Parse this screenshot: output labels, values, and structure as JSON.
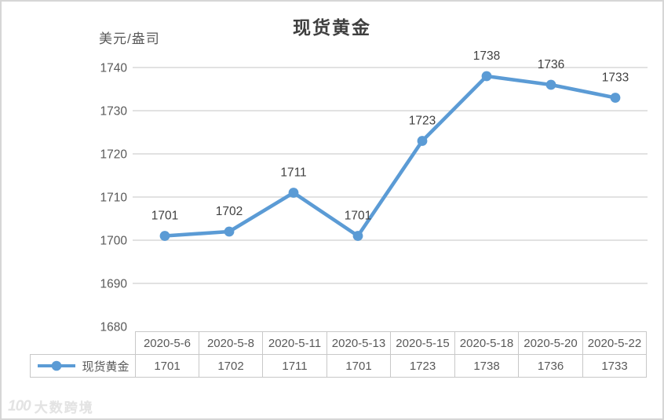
{
  "chart_data": {
    "type": "line",
    "title": "现货黄金",
    "y_unit_label": "美元/盎司",
    "categories": [
      "2020-5-6",
      "2020-5-8",
      "2020-5-11",
      "2020-5-13",
      "2020-5-15",
      "2020-5-18",
      "2020-5-20",
      "2020-5-22"
    ],
    "series": [
      {
        "name": "现货黄金",
        "values": [
          1701,
          1702,
          1711,
          1701,
          1723,
          1738,
          1736,
          1733
        ]
      }
    ],
    "ylim": [
      1680,
      1740
    ],
    "ytick_step": 10,
    "yticks": [
      1740,
      1730,
      1720,
      1710,
      1700,
      1690,
      1680
    ],
    "grid": true,
    "data_labels": true,
    "legend_position": "data-table-left",
    "line_color": "#5B9BD5",
    "gridline_color": "#d9d9d9",
    "tick_label_color": "#595959",
    "data_label_color": "#404040"
  },
  "watermark": {
    "logo": "100",
    "text": "大数跨境"
  }
}
